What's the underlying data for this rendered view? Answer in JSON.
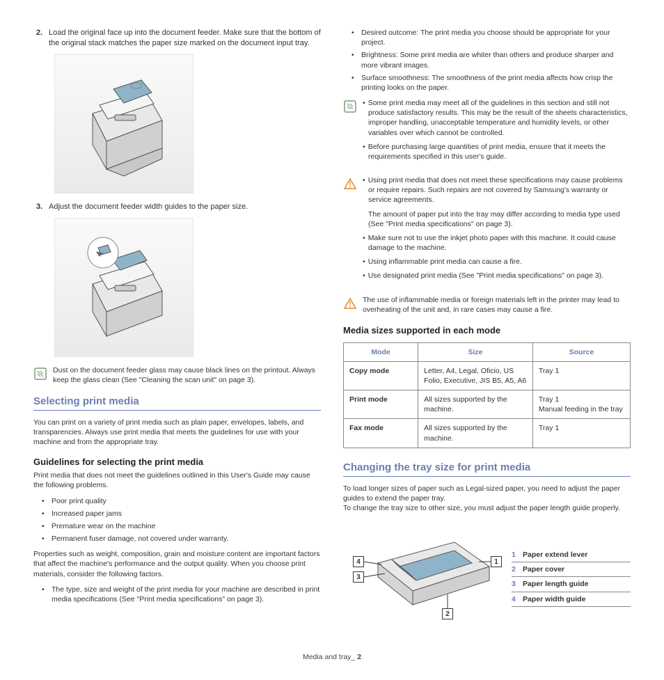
{
  "colors": {
    "heading": "#6b7db3",
    "text": "#333333",
    "border": "#888888",
    "noteIcon": "#7a9a7a",
    "warnIcon": "#e08a2a",
    "paperAccent": "#8fb4c9",
    "figureBg": "#f0f0f0"
  },
  "left": {
    "step2": {
      "num": "2.",
      "text": "Load the original face up into the document feeder. Make sure that the bottom of the original stack matches the paper size marked on the document input tray."
    },
    "step3": {
      "num": "3.",
      "text": "Adjust the document feeder width guides to the paper size."
    },
    "note1": "Dust on the document feeder glass may cause black lines on the printout. Always keep the glass clean (See \"Cleaning the scan unit\" on page 3).",
    "h_select": "Selecting print media",
    "p_select": "You can print on a variety of print media such as plain paper, envelopes, labels, and transparencies. Always use print media that meets the guidelines for use with your machine and from the appropriate tray.",
    "h_guidelines": "Guidelines for selecting the print media",
    "p_guidelines_intro": "Print media that does not meet the guidelines outlined in this User's Guide may cause the following problems.",
    "problems": [
      "Poor print quality",
      "Increased paper jams",
      "Premature wear on the machine",
      "Permanent fuser damage, not covered under warranty."
    ],
    "p_properties": "Properties such as weight, composition, grain and moisture content are important factors that affect the machine's performance and the output quality. When you choose print materials, consider the following factors.",
    "factor1": "The type, size and weight of the print media for your machine are described in print media specifications (See \"Print media specifications\" on page 3)."
  },
  "right": {
    "factors": [
      "Desired outcome: The print media you choose should be appropriate for your project.",
      "Brightness: Some print media are whiter than others and produce sharper and more vibrant images.",
      "Surface smoothness: The smoothness of the print media affects how crisp the printing looks on the paper."
    ],
    "noteA": [
      "Some print media may meet all of the guidelines in this section and still not produce satisfactory results. This may be the result of the sheets characteristics, improper handling, unacceptable temperature and humidity levels, or other variables over which cannot be controlled.",
      "Before purchasing large quantities of print media, ensure that it meets the requirements specified in this user's guide."
    ],
    "warnA": [
      "Using print media that does not meet these specifications may cause problems or require repairs. Such repairs are not covered by Samsung's warranty or service agreements.",
      "__P__The amount of paper put into the tray may differ according to media type used (See \"Print media specifications\" on page 3).",
      "Make sure not to use the inkjet photo paper with this machine. It could cause damage to the machine.",
      "Using inflammable print media can cause a fire.",
      "Use designated print media (See \"Print media specifications\" on page 3)."
    ],
    "warnB": "The use of inflammable media or foreign materials left in the printer may lead to overheating of the unit and, in rare cases may cause a fire.",
    "h_media_sizes": "Media sizes supported in each mode",
    "table": {
      "headers": [
        "Mode",
        "Size",
        "Source"
      ],
      "rows": [
        [
          "Copy mode",
          "Letter, A4, Legal, Oficio, US Folio, Executive, JIS B5, A5, A6",
          "Tray 1"
        ],
        [
          "Print mode",
          "All sizes supported by the machine.",
          "Tray 1\nManual feeding in the tray"
        ],
        [
          "Fax mode",
          "All sizes supported by the machine.",
          "Tray 1"
        ]
      ],
      "col_widths": [
        "26%",
        "40%",
        "34%"
      ]
    },
    "h_changing": "Changing the tray size for print media",
    "p_changing": "To load longer sizes of paper such as Legal-sized paper, you need to adjust the paper guides to extend the paper tray.\nTo change the tray size to other size, you must adjust the paper length guide properly.",
    "legend": [
      {
        "n": "1",
        "t": "Paper extend lever"
      },
      {
        "n": "2",
        "t": "Paper cover"
      },
      {
        "n": "3",
        "t": "Paper length guide"
      },
      {
        "n": "4",
        "t": "Paper width guide"
      }
    ]
  },
  "footer": {
    "prefix": "Media and tray_ ",
    "page": "2"
  }
}
